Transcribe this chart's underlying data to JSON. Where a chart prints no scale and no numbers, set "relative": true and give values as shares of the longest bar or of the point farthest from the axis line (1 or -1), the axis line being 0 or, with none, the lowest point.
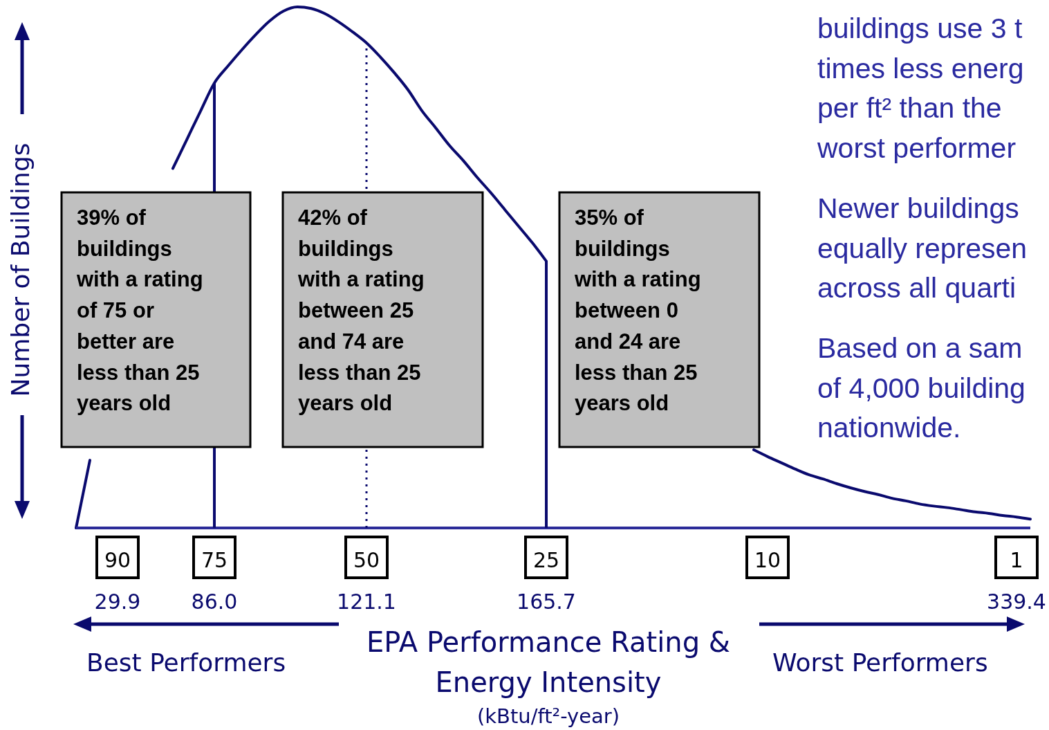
{
  "chart_data": {
    "type": "line",
    "relative": true,
    "xlabel": "EPA Performance Rating &\nEnergy Intensity",
    "ylabel": "Number of Buildings",
    "color": "#0a0a6e",
    "categories": [
      null,
      null,
      null,
      "90",
      null,
      null,
      null,
      null,
      null,
      null,
      "75",
      null,
      null,
      null,
      null,
      null,
      null,
      null,
      null,
      null,
      null,
      "50",
      null,
      null,
      null,
      null,
      null,
      null,
      null,
      null,
      null,
      null,
      null,
      null,
      "25",
      null,
      null,
      null,
      null,
      null,
      null,
      null,
      null,
      null,
      null,
      null,
      null,
      null,
      null,
      null,
      "10",
      null,
      null,
      null,
      null,
      null,
      null,
      null,
      null,
      null,
      null,
      null,
      null,
      null,
      null,
      null,
      null,
      null,
      "1",
      null
    ],
    "values": [
      0,
      0.13,
      null,
      null,
      null,
      null,
      null,
      0.69,
      0.745,
      0.8,
      0.854,
      0.887,
      0.918,
      0.947,
      0.973,
      0.992,
      1,
      0.997,
      0.987,
      0.971,
      0.952,
      0.931,
      0.904,
      0.874,
      0.841,
      0.801,
      0.768,
      0.734,
      0.705,
      0.673,
      0.643,
      0.611,
      0.579,
      0.547,
      0.512,
      null,
      null,
      null,
      null,
      null,
      null,
      null,
      null,
      null,
      null,
      null,
      null,
      null,
      null,
      0.15,
      0.137,
      0.125,
      0.113,
      0.102,
      0.094,
      0.085,
      0.077,
      0.07,
      0.064,
      0.057,
      0.052,
      0.046,
      0.042,
      0.039,
      0.035,
      0.031,
      0.028,
      0.024,
      0.021,
      0.017
    ],
    "ref_lines": [
      {
        "axis": "x",
        "value": "75",
        "line_style": "solid"
      },
      {
        "axis": "x",
        "value": "50",
        "line_style": "dotted"
      },
      {
        "axis": "x",
        "value": "25",
        "line_style": "solid"
      }
    ],
    "annotations": [
      "39% of\nbuildings\nwith a rating\nof 75 or\nbetter are\nless than 25\nyears old",
      "42% of\nbuildings\nwith a rating\nbetween 25\nand 74 are\nless than 25\nyears old",
      "35% of\nbuildings\nwith a rating\nbetween 0\nand 24 are\nless than 25\nyears old",
      "buildings use 3 t\ntimes less energ\nper ft² than the\nworst performer",
      "Newer buildings\nequally represen\nacross all quarti",
      "Based on a sam\nof 4,000 building\nnationwide.",
      "Best Performers",
      "Worst Performers",
      "(kBtu/ft²-year)",
      "29.9",
      "86.0",
      "121.1",
      "165.7",
      "339.4"
    ]
  }
}
